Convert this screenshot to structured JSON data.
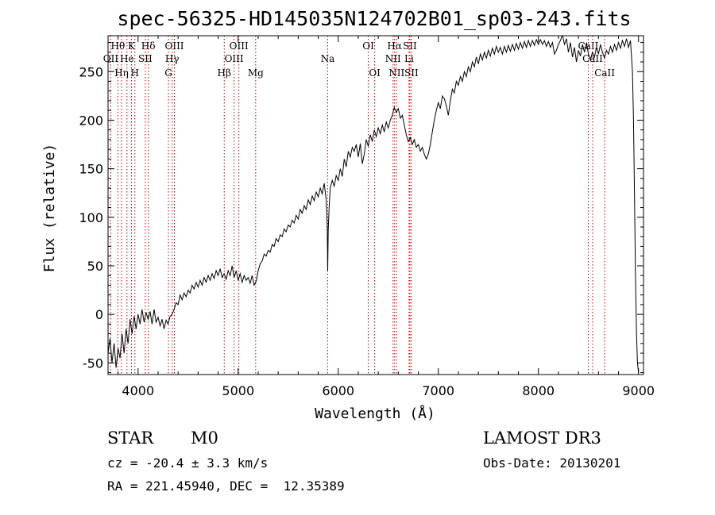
{
  "chart_data": {
    "type": "line",
    "title": "spec-56325-HD145035N124702B01_sp03-243.fits",
    "xlabel": "Wavelength (Å)",
    "ylabel": "Flux (relative)",
    "xlim": [
      3700,
      9050
    ],
    "ylim": [
      -62,
      287
    ],
    "x_ticks": [
      4000,
      5000,
      6000,
      7000,
      8000,
      9000
    ],
    "y_ticks": [
      -50,
      0,
      50,
      100,
      150,
      200,
      250
    ],
    "series": [
      {
        "name": "flux",
        "color": "#000000",
        "points": [
          [
            3700,
            -40
          ],
          [
            3720,
            -25
          ],
          [
            3740,
            -50
          ],
          [
            3760,
            -30
          ],
          [
            3780,
            -55
          ],
          [
            3800,
            -35
          ],
          [
            3820,
            -45
          ],
          [
            3840,
            -20
          ],
          [
            3860,
            -40
          ],
          [
            3880,
            -15
          ],
          [
            3900,
            -30
          ],
          [
            3920,
            -5
          ],
          [
            3940,
            -20
          ],
          [
            3960,
            -2
          ],
          [
            3980,
            -15
          ],
          [
            4000,
            0
          ],
          [
            4020,
            -10
          ],
          [
            4040,
            5
          ],
          [
            4060,
            -8
          ],
          [
            4080,
            2
          ],
          [
            4100,
            -5
          ],
          [
            4120,
            3
          ],
          [
            4140,
            -10
          ],
          [
            4160,
            5
          ],
          [
            4180,
            -8
          ],
          [
            4200,
            -3
          ],
          [
            4220,
            -12
          ],
          [
            4240,
            -5
          ],
          [
            4260,
            -15
          ],
          [
            4280,
            -6
          ],
          [
            4300,
            -10
          ],
          [
            4320,
            -2
          ],
          [
            4340,
            0
          ],
          [
            4360,
            5
          ],
          [
            4380,
            12
          ],
          [
            4400,
            10
          ],
          [
            4420,
            20
          ],
          [
            4440,
            15
          ],
          [
            4460,
            22
          ],
          [
            4480,
            18
          ],
          [
            4500,
            25
          ],
          [
            4520,
            22
          ],
          [
            4540,
            30
          ],
          [
            4560,
            26
          ],
          [
            4580,
            33
          ],
          [
            4600,
            28
          ],
          [
            4620,
            35
          ],
          [
            4640,
            30
          ],
          [
            4660,
            38
          ],
          [
            4680,
            33
          ],
          [
            4700,
            40
          ],
          [
            4720,
            35
          ],
          [
            4740,
            42
          ],
          [
            4760,
            37
          ],
          [
            4780,
            45
          ],
          [
            4800,
            40
          ],
          [
            4820,
            47
          ],
          [
            4840,
            38
          ],
          [
            4860,
            42
          ],
          [
            4880,
            36
          ],
          [
            4900,
            45
          ],
          [
            4920,
            40
          ],
          [
            4940,
            50
          ],
          [
            4960,
            38
          ],
          [
            4980,
            45
          ],
          [
            5000,
            35
          ],
          [
            5020,
            42
          ],
          [
            5040,
            33
          ],
          [
            5060,
            40
          ],
          [
            5080,
            35
          ],
          [
            5100,
            38
          ],
          [
            5120,
            32
          ],
          [
            5140,
            40
          ],
          [
            5160,
            30
          ],
          [
            5180,
            34
          ],
          [
            5200,
            45
          ],
          [
            5220,
            52
          ],
          [
            5240,
            55
          ],
          [
            5260,
            62
          ],
          [
            5280,
            60
          ],
          [
            5300,
            66
          ],
          [
            5320,
            64
          ],
          [
            5340,
            72
          ],
          [
            5360,
            70
          ],
          [
            5380,
            78
          ],
          [
            5400,
            75
          ],
          [
            5420,
            82
          ],
          [
            5440,
            80
          ],
          [
            5460,
            88
          ],
          [
            5480,
            85
          ],
          [
            5500,
            92
          ],
          [
            5520,
            90
          ],
          [
            5540,
            97
          ],
          [
            5560,
            94
          ],
          [
            5580,
            102
          ],
          [
            5600,
            98
          ],
          [
            5620,
            108
          ],
          [
            5640,
            104
          ],
          [
            5660,
            112
          ],
          [
            5680,
            108
          ],
          [
            5700,
            118
          ],
          [
            5720,
            113
          ],
          [
            5740,
            122
          ],
          [
            5760,
            117
          ],
          [
            5780,
            126
          ],
          [
            5800,
            121
          ],
          [
            5820,
            130
          ],
          [
            5840,
            124
          ],
          [
            5860,
            135
          ],
          [
            5880,
            118
          ],
          [
            5890,
            90
          ],
          [
            5895,
            45
          ],
          [
            5900,
            88
          ],
          [
            5910,
            112
          ],
          [
            5920,
            130
          ],
          [
            5940,
            138
          ],
          [
            5960,
            132
          ],
          [
            5980,
            143
          ],
          [
            6000,
            138
          ],
          [
            6020,
            150
          ],
          [
            6040,
            142
          ],
          [
            6060,
            160
          ],
          [
            6080,
            152
          ],
          [
            6100,
            168
          ],
          [
            6120,
            162
          ],
          [
            6140,
            172
          ],
          [
            6160,
            168
          ],
          [
            6180,
            175
          ],
          [
            6200,
            162
          ],
          [
            6220,
            176
          ],
          [
            6240,
            155
          ],
          [
            6260,
            165
          ],
          [
            6280,
            180
          ],
          [
            6300,
            173
          ],
          [
            6320,
            185
          ],
          [
            6340,
            178
          ],
          [
            6360,
            190
          ],
          [
            6380,
            183
          ],
          [
            6400,
            192
          ],
          [
            6420,
            186
          ],
          [
            6440,
            195
          ],
          [
            6460,
            188
          ],
          [
            6480,
            198
          ],
          [
            6500,
            192
          ],
          [
            6520,
            200
          ],
          [
            6540,
            205
          ],
          [
            6560,
            213
          ],
          [
            6580,
            208
          ],
          [
            6600,
            212
          ],
          [
            6620,
            202
          ],
          [
            6640,
            205
          ],
          [
            6660,
            195
          ],
          [
            6680,
            185
          ],
          [
            6700,
            178
          ],
          [
            6720,
            182
          ],
          [
            6740,
            175
          ],
          [
            6760,
            180
          ],
          [
            6780,
            172
          ],
          [
            6800,
            175
          ],
          [
            6820,
            168
          ],
          [
            6840,
            172
          ],
          [
            6860,
            165
          ],
          [
            6880,
            160
          ],
          [
            6900,
            165
          ],
          [
            6920,
            175
          ],
          [
            6940,
            188
          ],
          [
            6960,
            200
          ],
          [
            6980,
            210
          ],
          [
            7000,
            218
          ],
          [
            7020,
            212
          ],
          [
            7040,
            225
          ],
          [
            7060,
            222
          ],
          [
            7080,
            215
          ],
          [
            7100,
            205
          ],
          [
            7120,
            220
          ],
          [
            7140,
            232
          ],
          [
            7160,
            228
          ],
          [
            7180,
            240
          ],
          [
            7200,
            236
          ],
          [
            7220,
            245
          ],
          [
            7240,
            240
          ],
          [
            7260,
            250
          ],
          [
            7280,
            245
          ],
          [
            7300,
            255
          ],
          [
            7320,
            250
          ],
          [
            7340,
            260
          ],
          [
            7360,
            255
          ],
          [
            7380,
            265
          ],
          [
            7400,
            258
          ],
          [
            7420,
            268
          ],
          [
            7440,
            262
          ],
          [
            7460,
            270
          ],
          [
            7480,
            264
          ],
          [
            7500,
            272
          ],
          [
            7520,
            266
          ],
          [
            7540,
            274
          ],
          [
            7560,
            268
          ],
          [
            7580,
            276
          ],
          [
            7600,
            270
          ],
          [
            7620,
            275
          ],
          [
            7640,
            268
          ],
          [
            7660,
            276
          ],
          [
            7680,
            270
          ],
          [
            7700,
            277
          ],
          [
            7720,
            271
          ],
          [
            7740,
            278
          ],
          [
            7760,
            272
          ],
          [
            7780,
            279
          ],
          [
            7800,
            273
          ],
          [
            7820,
            280
          ],
          [
            7840,
            274
          ],
          [
            7860,
            281
          ],
          [
            7880,
            275
          ],
          [
            7900,
            282
          ],
          [
            7920,
            276
          ],
          [
            7940,
            282
          ],
          [
            7960,
            277
          ],
          [
            7980,
            283
          ],
          [
            8000,
            278
          ],
          [
            8020,
            283
          ],
          [
            8040,
            278
          ],
          [
            8060,
            282
          ],
          [
            8080,
            276
          ],
          [
            8100,
            281
          ],
          [
            8120,
            275
          ],
          [
            8140,
            280
          ],
          [
            8160,
            268
          ],
          [
            8180,
            272
          ],
          [
            8200,
            278
          ],
          [
            8220,
            282
          ],
          [
            8240,
            288
          ],
          [
            8260,
            278
          ],
          [
            8280,
            284
          ],
          [
            8300,
            270
          ],
          [
            8320,
            280
          ],
          [
            8340,
            265
          ],
          [
            8360,
            275
          ],
          [
            8380,
            260
          ],
          [
            8400,
            272
          ],
          [
            8420,
            266
          ],
          [
            8440,
            278
          ],
          [
            8460,
            270
          ],
          [
            8480,
            280
          ],
          [
            8500,
            268
          ],
          [
            8520,
            262
          ],
          [
            8540,
            270
          ],
          [
            8560,
            265
          ],
          [
            8580,
            275
          ],
          [
            8600,
            268
          ],
          [
            8620,
            278
          ],
          [
            8640,
            270
          ],
          [
            8660,
            264
          ],
          [
            8680,
            272
          ],
          [
            8700,
            268
          ],
          [
            8720,
            276
          ],
          [
            8740,
            270
          ],
          [
            8760,
            278
          ],
          [
            8780,
            272
          ],
          [
            8800,
            280
          ],
          [
            8820,
            274
          ],
          [
            8840,
            282
          ],
          [
            8860,
            276
          ],
          [
            8880,
            284
          ],
          [
            8900,
            275
          ],
          [
            8920,
            282
          ],
          [
            8940,
            250
          ],
          [
            8950,
            200
          ],
          [
            8960,
            120
          ],
          [
            8970,
            40
          ],
          [
            8980,
            -20
          ],
          [
            8990,
            -50
          ],
          [
            9000,
            -60
          ]
        ]
      }
    ],
    "lines": [
      {
        "label": "Hθ",
        "w": 3798,
        "side": "top",
        "row": 0
      },
      {
        "label": "OII",
        "w": 3727,
        "side": "top",
        "row": 1
      },
      {
        "label": "Hη",
        "w": 3835,
        "side": "top",
        "row": 2
      },
      {
        "label": "He",
        "w": 3889,
        "side": "top",
        "row": 1
      },
      {
        "label": "K",
        "w": 3934,
        "side": "top",
        "row": 0
      },
      {
        "label": "H",
        "w": 3968,
        "side": "top",
        "row": 2
      },
      {
        "label": "Hδ",
        "w": 4102,
        "side": "top",
        "row": 0
      },
      {
        "label": "SII",
        "w": 4072,
        "side": "top",
        "row": 1
      },
      {
        "label": "OIII",
        "w": 4363,
        "side": "top",
        "row": 0
      },
      {
        "label": "Hγ",
        "w": 4341,
        "side": "top",
        "row": 1
      },
      {
        "label": "G",
        "w": 4304,
        "side": "top",
        "row": 2
      },
      {
        "label": "Hβ",
        "w": 4861,
        "side": "top",
        "row": 2
      },
      {
        "label": "OIII",
        "w": 4959,
        "side": "top",
        "row": 1
      },
      {
        "label": "OIII",
        "w": 5007,
        "side": "top",
        "row": 0
      },
      {
        "label": "Mg",
        "w": 5175,
        "side": "top",
        "row": 2
      },
      {
        "label": "Na",
        "w": 5894,
        "side": "top",
        "row": 1
      },
      {
        "label": "OI",
        "w": 6300,
        "side": "top",
        "row": 0
      },
      {
        "label": "OI",
        "w": 6364,
        "side": "top",
        "row": 2
      },
      {
        "label": "NII",
        "w": 6548,
        "side": "top",
        "row": 1
      },
      {
        "label": "Hα",
        "w": 6563,
        "side": "top",
        "row": 0
      },
      {
        "label": "NII",
        "w": 6583,
        "side": "top",
        "row": 2
      },
      {
        "label": "SII",
        "w": 6716,
        "side": "top",
        "row": 0
      },
      {
        "label": "Li",
        "w": 6708,
        "side": "top",
        "row": 1
      },
      {
        "label": "SII",
        "w": 6731,
        "side": "top",
        "row": 2
      },
      {
        "label": "CaII",
        "w": 8498,
        "side": "top",
        "row": 0
      },
      {
        "label": "CaII",
        "w": 8542,
        "side": "top",
        "row": 1
      },
      {
        "label": "CaII",
        "w": 8662,
        "side": "top",
        "row": 2
      }
    ]
  },
  "info": {
    "class": "STAR",
    "subclass": "M0",
    "cz": "cz = -20.4 ± 3.3 km/s",
    "radec": "RA = 221.45940, DEC =  12.35389",
    "survey": "LAMOST DR3",
    "obsdate": "Obs-Date: 20130201"
  },
  "colors": {
    "line_marker": "#c00000",
    "spectrum": "#000000"
  }
}
